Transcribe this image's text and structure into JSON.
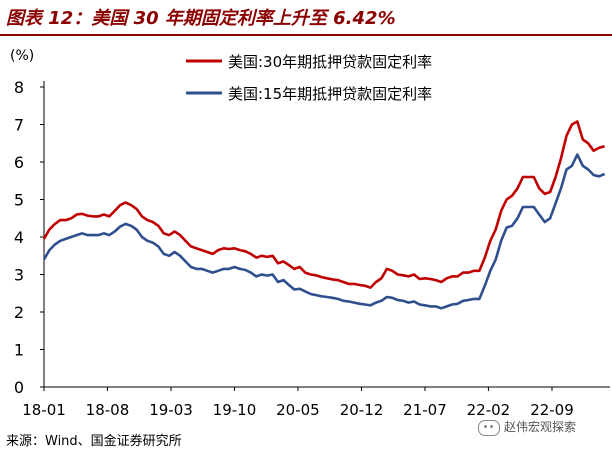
{
  "title": "图表 12：美国 30 年期固定利率上升至 6.42%",
  "source": "来源：Wind、国金证券研究所",
  "watermark": "赵伟宏观探索",
  "colors": {
    "title": "#8b0000",
    "series30": "#c00000",
    "series15": "#2f4f8f"
  },
  "chart_data": {
    "type": "line",
    "ylabel": "(%)",
    "ylim": [
      0,
      8
    ],
    "yticks": [
      0,
      1,
      2,
      3,
      4,
      5,
      6,
      7,
      8
    ],
    "xlim": [
      2018.0,
      2023.2
    ],
    "xticks": [
      {
        "label": "18-01",
        "x": 2018.0
      },
      {
        "label": "18-08",
        "x": 2018.583
      },
      {
        "label": "19-03",
        "x": 2019.167
      },
      {
        "label": "19-10",
        "x": 2019.75
      },
      {
        "label": "20-05",
        "x": 2020.333
      },
      {
        "label": "20-12",
        "x": 2020.917
      },
      {
        "label": "21-07",
        "x": 2021.5
      },
      {
        "label": "22-02",
        "x": 2022.083
      },
      {
        "label": "22-09",
        "x": 2022.667
      }
    ],
    "legend_position": "top",
    "series": [
      {
        "name": "美国:30年期抵押贷款固定利率",
        "x": [
          2018.0,
          2018.05,
          2018.1,
          2018.15,
          2018.2,
          2018.25,
          2018.3,
          2018.35,
          2018.4,
          2018.45,
          2018.5,
          2018.55,
          2018.6,
          2018.65,
          2018.7,
          2018.75,
          2018.8,
          2018.85,
          2018.9,
          2018.95,
          2019.0,
          2019.05,
          2019.1,
          2019.15,
          2019.2,
          2019.25,
          2019.3,
          2019.35,
          2019.4,
          2019.45,
          2019.5,
          2019.55,
          2019.6,
          2019.65,
          2019.7,
          2019.75,
          2019.8,
          2019.85,
          2019.9,
          2019.95,
          2020.0,
          2020.05,
          2020.1,
          2020.15,
          2020.2,
          2020.25,
          2020.3,
          2020.35,
          2020.4,
          2020.45,
          2020.5,
          2020.55,
          2020.6,
          2020.65,
          2020.7,
          2020.75,
          2020.8,
          2020.85,
          2020.9,
          2020.95,
          2021.0,
          2021.05,
          2021.1,
          2021.15,
          2021.2,
          2021.25,
          2021.3,
          2021.35,
          2021.4,
          2021.45,
          2021.5,
          2021.55,
          2021.6,
          2021.65,
          2021.7,
          2021.75,
          2021.8,
          2021.85,
          2021.9,
          2021.95,
          2022.0,
          2022.05,
          2022.1,
          2022.15,
          2022.2,
          2022.25,
          2022.3,
          2022.35,
          2022.4,
          2022.45,
          2022.5,
          2022.55,
          2022.6,
          2022.65,
          2022.7,
          2022.75,
          2022.8,
          2022.85,
          2022.9,
          2022.95,
          2023.0,
          2023.05,
          2023.1,
          2023.15
        ],
        "values": [
          3.95,
          4.2,
          4.35,
          4.45,
          4.45,
          4.5,
          4.6,
          4.62,
          4.57,
          4.55,
          4.55,
          4.6,
          4.55,
          4.7,
          4.85,
          4.92,
          4.85,
          4.75,
          4.55,
          4.45,
          4.4,
          4.3,
          4.1,
          4.05,
          4.15,
          4.05,
          3.9,
          3.75,
          3.7,
          3.65,
          3.6,
          3.55,
          3.65,
          3.7,
          3.68,
          3.7,
          3.65,
          3.62,
          3.55,
          3.45,
          3.5,
          3.47,
          3.5,
          3.3,
          3.35,
          3.25,
          3.15,
          3.2,
          3.05,
          3.0,
          2.98,
          2.93,
          2.9,
          2.87,
          2.85,
          2.8,
          2.75,
          2.75,
          2.72,
          2.7,
          2.65,
          2.8,
          2.9,
          3.15,
          3.1,
          3.0,
          2.98,
          2.95,
          3.0,
          2.88,
          2.9,
          2.88,
          2.85,
          2.8,
          2.9,
          2.95,
          2.95,
          3.05,
          3.05,
          3.1,
          3.1,
          3.45,
          3.9,
          4.2,
          4.7,
          5.0,
          5.1,
          5.3,
          5.6,
          5.6,
          5.6,
          5.3,
          5.15,
          5.2,
          5.6,
          6.1,
          6.7,
          7.0,
          7.08,
          6.6,
          6.5,
          6.3,
          6.38,
          6.42
        ]
      },
      {
        "name": "美国:15年期抵押贷款固定利率",
        "x": [
          2018.0,
          2018.05,
          2018.1,
          2018.15,
          2018.2,
          2018.25,
          2018.3,
          2018.35,
          2018.4,
          2018.45,
          2018.5,
          2018.55,
          2018.6,
          2018.65,
          2018.7,
          2018.75,
          2018.8,
          2018.85,
          2018.9,
          2018.95,
          2019.0,
          2019.05,
          2019.1,
          2019.15,
          2019.2,
          2019.25,
          2019.3,
          2019.35,
          2019.4,
          2019.45,
          2019.5,
          2019.55,
          2019.6,
          2019.65,
          2019.7,
          2019.75,
          2019.8,
          2019.85,
          2019.9,
          2019.95,
          2020.0,
          2020.05,
          2020.1,
          2020.15,
          2020.2,
          2020.25,
          2020.3,
          2020.35,
          2020.4,
          2020.45,
          2020.5,
          2020.55,
          2020.6,
          2020.65,
          2020.7,
          2020.75,
          2020.8,
          2020.85,
          2020.9,
          2020.95,
          2021.0,
          2021.05,
          2021.1,
          2021.15,
          2021.2,
          2021.25,
          2021.3,
          2021.35,
          2021.4,
          2021.45,
          2021.5,
          2021.55,
          2021.6,
          2021.65,
          2021.7,
          2021.75,
          2021.8,
          2021.85,
          2021.9,
          2021.95,
          2022.0,
          2022.05,
          2022.1,
          2022.15,
          2022.2,
          2022.25,
          2022.3,
          2022.35,
          2022.4,
          2022.45,
          2022.5,
          2022.55,
          2022.6,
          2022.65,
          2022.7,
          2022.75,
          2022.8,
          2022.85,
          2022.9,
          2022.95,
          2023.0,
          2023.05,
          2023.1,
          2023.15
        ],
        "values": [
          3.4,
          3.65,
          3.8,
          3.9,
          3.95,
          4.0,
          4.05,
          4.1,
          4.05,
          4.05,
          4.05,
          4.1,
          4.05,
          4.15,
          4.28,
          4.35,
          4.3,
          4.2,
          4.0,
          3.9,
          3.85,
          3.75,
          3.55,
          3.5,
          3.6,
          3.5,
          3.35,
          3.2,
          3.15,
          3.15,
          3.1,
          3.05,
          3.1,
          3.15,
          3.15,
          3.2,
          3.15,
          3.12,
          3.05,
          2.95,
          3.0,
          2.97,
          3.0,
          2.8,
          2.85,
          2.72,
          2.6,
          2.62,
          2.55,
          2.48,
          2.45,
          2.42,
          2.4,
          2.38,
          2.35,
          2.3,
          2.28,
          2.25,
          2.22,
          2.2,
          2.18,
          2.25,
          2.3,
          2.4,
          2.38,
          2.32,
          2.3,
          2.25,
          2.28,
          2.2,
          2.18,
          2.15,
          2.15,
          2.1,
          2.15,
          2.2,
          2.22,
          2.3,
          2.32,
          2.35,
          2.35,
          2.7,
          3.1,
          3.4,
          3.9,
          4.25,
          4.3,
          4.5,
          4.8,
          4.8,
          4.8,
          4.6,
          4.4,
          4.5,
          4.9,
          5.3,
          5.8,
          5.9,
          6.2,
          5.9,
          5.8,
          5.65,
          5.62,
          5.68
        ]
      }
    ]
  }
}
